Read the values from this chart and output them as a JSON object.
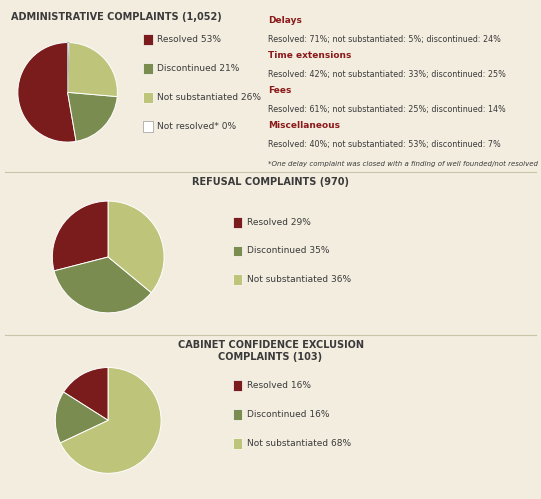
{
  "bg_color": "#f3ede0",
  "section_line_color": "#c8c4a8",
  "dark_red": "#7a1c1c",
  "olive_green": "#7a8c50",
  "light_olive": "#bec47a",
  "white": "#ffffff",
  "text_dark": "#3a3a3a",
  "bold_red": "#8b1a1a",
  "panel1": {
    "title": "ADMINISTRATIVE COMPLAINTS (1,052)",
    "slices": [
      53,
      21,
      26,
      0.5
    ],
    "colors": [
      "#7a1c1c",
      "#7a8c50",
      "#bec47a",
      "#ffffff"
    ],
    "labels": [
      "Resolved 53%",
      "Discontinued 21%",
      "Not substantiated 26%",
      "Not resolved* 0%"
    ],
    "startangle": 90,
    "annotation_lines": [
      {
        "bold": "Delays",
        "text": "Resolved: 71%; not substantiated: 5%; discontinued: 24%"
      },
      {
        "bold": "Time extensions",
        "text": "Resolved: 42%; not substantiated: 33%; discontinued: 25%"
      },
      {
        "bold": "Fees",
        "text": "Resolved: 61%; not substantiated: 25%; discontinued: 14%"
      },
      {
        "bold": "Miscellaneous",
        "text": "Resolved: 40%; not substantiated: 53%; discontinued: 7%"
      }
    ],
    "footnote": "*One delay complaint was closed with a finding of well founded/not resolved"
  },
  "panel2": {
    "title": "REFUSAL COMPLAINTS (970)",
    "slices": [
      29,
      35,
      36
    ],
    "colors": [
      "#7a1c1c",
      "#7a8c50",
      "#bec47a"
    ],
    "labels": [
      "Resolved 29%",
      "Discontinued 35%",
      "Not substantiated 36%"
    ],
    "startangle": 90
  },
  "panel3": {
    "title": "CABINET CONFIDENCE EXCLUSION\nCOMPLAINTS (103)",
    "slices": [
      16,
      16,
      68
    ],
    "colors": [
      "#7a1c1c",
      "#7a8c50",
      "#bec47a"
    ],
    "labels": [
      "Resolved 16%",
      "Discontinued 16%",
      "Not substantiated 68%"
    ],
    "startangle": 90
  }
}
